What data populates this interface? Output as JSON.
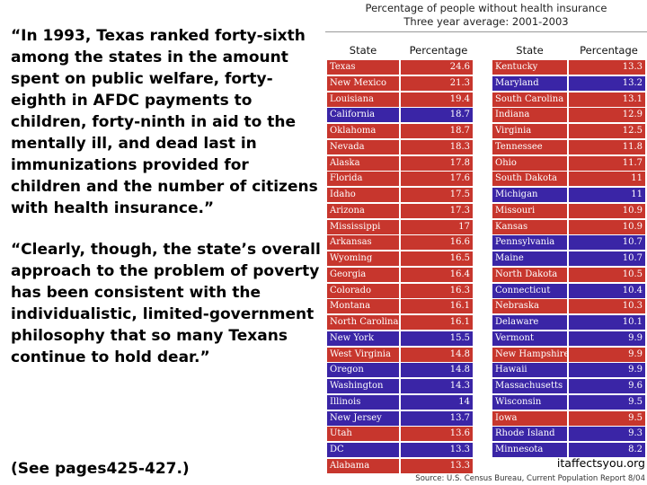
{
  "quotes": {
    "quote1": "“In 1993, Texas ranked forty-sixth among the states in the amount spent on public welfare, forty-eighth in AFDC payments to children, forty-ninth in aid to the mentally ill, and dead last in immunizations provided for children and the number of citizens with health insurance.”",
    "quote2": "“Clearly, though, the state’s overall approach to the problem of poverty has been consistent with the individualistic, limited-government philosophy that so many Texans continue to hold dear.”",
    "reference": "(See pages425-427.)"
  },
  "table": {
    "title": "Percentage of people without health insurance",
    "subtitle": "Three year average: 2001-2003",
    "col_state": "State",
    "col_percentage": "Percentage",
    "colors": {
      "red": "#c7362d",
      "blue": "#3a25a6"
    },
    "left_rows": [
      {
        "state": "Texas",
        "pct": "24.6",
        "color": "red"
      },
      {
        "state": "New Mexico",
        "pct": "21.3",
        "color": "red"
      },
      {
        "state": "Louisiana",
        "pct": "19.4",
        "color": "red"
      },
      {
        "state": "California",
        "pct": "18.7",
        "color": "blue"
      },
      {
        "state": "Oklahoma",
        "pct": "18.7",
        "color": "red"
      },
      {
        "state": "Nevada",
        "pct": "18.3",
        "color": "red"
      },
      {
        "state": "Alaska",
        "pct": "17.8",
        "color": "red"
      },
      {
        "state": "Florida",
        "pct": "17.6",
        "color": "red"
      },
      {
        "state": "Idaho",
        "pct": "17.5",
        "color": "red"
      },
      {
        "state": "Arizona",
        "pct": "17.3",
        "color": "red"
      },
      {
        "state": "Mississippi",
        "pct": "17",
        "color": "red"
      },
      {
        "state": "Arkansas",
        "pct": "16.6",
        "color": "red"
      },
      {
        "state": "Wyoming",
        "pct": "16.5",
        "color": "red"
      },
      {
        "state": "Georgia",
        "pct": "16.4",
        "color": "red"
      },
      {
        "state": "Colorado",
        "pct": "16.3",
        "color": "red"
      },
      {
        "state": "Montana",
        "pct": "16.1",
        "color": "red"
      },
      {
        "state": "North Carolina",
        "pct": "16.1",
        "color": "red"
      },
      {
        "state": "New York",
        "pct": "15.5",
        "color": "blue"
      },
      {
        "state": "West Virginia",
        "pct": "14.8",
        "color": "red"
      },
      {
        "state": "Oregon",
        "pct": "14.8",
        "color": "blue"
      },
      {
        "state": "Washington",
        "pct": "14.3",
        "color": "blue"
      },
      {
        "state": "Illinois",
        "pct": "14",
        "color": "blue"
      },
      {
        "state": "New Jersey",
        "pct": "13.7",
        "color": "blue"
      },
      {
        "state": "Utah",
        "pct": "13.6",
        "color": "red"
      },
      {
        "state": "DC",
        "pct": "13.3",
        "color": "blue"
      },
      {
        "state": "Alabama",
        "pct": "13.3",
        "color": "red"
      }
    ],
    "right_rows": [
      {
        "state": "Kentucky",
        "pct": "13.3",
        "color": "red"
      },
      {
        "state": "Maryland",
        "pct": "13.2",
        "color": "blue"
      },
      {
        "state": "South Carolina",
        "pct": "13.1",
        "color": "red"
      },
      {
        "state": "Indiana",
        "pct": "12.9",
        "color": "red"
      },
      {
        "state": "Virginia",
        "pct": "12.5",
        "color": "red"
      },
      {
        "state": "Tennessee",
        "pct": "11.8",
        "color": "red"
      },
      {
        "state": "Ohio",
        "pct": "11.7",
        "color": "red"
      },
      {
        "state": "South Dakota",
        "pct": "11",
        "color": "red"
      },
      {
        "state": "Michigan",
        "pct": "11",
        "color": "blue"
      },
      {
        "state": "Missouri",
        "pct": "10.9",
        "color": "red"
      },
      {
        "state": "Kansas",
        "pct": "10.9",
        "color": "red"
      },
      {
        "state": "Pennsylvania",
        "pct": "10.7",
        "color": "blue"
      },
      {
        "state": "Maine",
        "pct": "10.7",
        "color": "blue"
      },
      {
        "state": "North Dakota",
        "pct": "10.5",
        "color": "red"
      },
      {
        "state": "Connecticut",
        "pct": "10.4",
        "color": "blue"
      },
      {
        "state": "Nebraska",
        "pct": "10.3",
        "color": "red"
      },
      {
        "state": "Delaware",
        "pct": "10.1",
        "color": "blue"
      },
      {
        "state": "Vermont",
        "pct": "9.9",
        "color": "blue"
      },
      {
        "state": "New Hampshire",
        "pct": "9.9",
        "color": "red"
      },
      {
        "state": "Hawaii",
        "pct": "9.9",
        "color": "blue"
      },
      {
        "state": "Massachusetts",
        "pct": "9.6",
        "color": "blue"
      },
      {
        "state": "Wisconsin",
        "pct": "9.5",
        "color": "blue"
      },
      {
        "state": "Iowa",
        "pct": "9.5",
        "color": "red"
      },
      {
        "state": "Rhode Island",
        "pct": "9.3",
        "color": "blue"
      },
      {
        "state": "Minnesota",
        "pct": "8.2",
        "color": "blue"
      }
    ],
    "site": "itaffectsyou.org",
    "source": "Source: U.S. Census Bureau, Current Population Report 8/04"
  }
}
